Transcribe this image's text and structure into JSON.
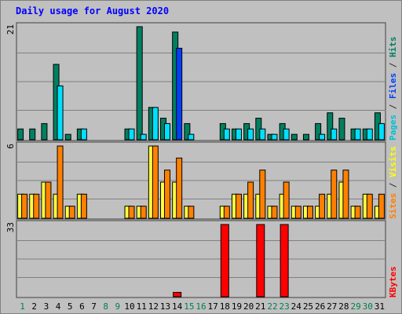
{
  "chart_data": {
    "type": "bar",
    "title": "Daily usage for August 2020",
    "categories": [
      "1",
      "2",
      "3",
      "4",
      "5",
      "6",
      "7",
      "8",
      "9",
      "10",
      "11",
      "12",
      "13",
      "14",
      "15",
      "16",
      "17",
      "18",
      "19",
      "20",
      "21",
      "22",
      "23",
      "24",
      "25",
      "26",
      "27",
      "28",
      "29",
      "30",
      "31"
    ],
    "weekend_days": [
      1,
      8,
      9,
      15,
      16,
      22,
      23,
      29,
      30
    ],
    "panels": [
      {
        "name": "hits-files-pages",
        "ymax": 21,
        "ymax_label": "21",
        "right_labels": [
          {
            "text": "Pages",
            "color": "#00c0d0"
          },
          {
            "text": " / ",
            "color": "#303030"
          },
          {
            "text": "Files",
            "color": "#0040ff"
          },
          {
            "text": " / ",
            "color": "#303030"
          },
          {
            "text": "Hits",
            "color": "#008060"
          }
        ],
        "series": [
          {
            "name": "Hits",
            "color": "#008060",
            "values": [
              2,
              2,
              3,
              14,
              1,
              2,
              0,
              0,
              0,
              2,
              21,
              6,
              4,
              20,
              3,
              0,
              0,
              3,
              2,
              3,
              4,
              1,
              3,
              1,
              1,
              3,
              5,
              4,
              2,
              2,
              5
            ]
          },
          {
            "name": "Files",
            "color": "#0040ff",
            "values": [
              0,
              0,
              0,
              0,
              0,
              0,
              0,
              0,
              0,
              0,
              0,
              2,
              0,
              17,
              0,
              0,
              0,
              0,
              0,
              0,
              0,
              0,
              0,
              0,
              0,
              0,
              0,
              0,
              0,
              0,
              0
            ]
          },
          {
            "name": "Pages",
            "color": "#00e0ff",
            "values": [
              0,
              0,
              0,
              10,
              0,
              2,
              0,
              0,
              0,
              2,
              1,
              6,
              3,
              0,
              1,
              0,
              0,
              2,
              2,
              2,
              2,
              1,
              2,
              0,
              0,
              1,
              2,
              0,
              2,
              2,
              3
            ]
          }
        ]
      },
      {
        "name": "visits-sites",
        "ymax": 6,
        "ymax_label": "6",
        "right_labels": [
          {
            "text": "Sites",
            "color": "#ff8000"
          },
          {
            "text": " / ",
            "color": "#303030"
          },
          {
            "text": "Visits",
            "color": "#ffff00"
          }
        ],
        "series": [
          {
            "name": "Visits",
            "color": "#ffff40",
            "values": [
              2,
              2,
              3,
              2,
              1,
              2,
              0,
              0,
              0,
              1,
              1,
              6,
              3,
              3,
              1,
              0,
              0,
              1,
              2,
              2,
              2,
              1,
              2,
              1,
              1,
              1,
              2,
              3,
              1,
              2,
              1
            ]
          },
          {
            "name": "Sites",
            "color": "#ff8000",
            "values": [
              2,
              2,
              3,
              6,
              1,
              2,
              0,
              0,
              0,
              1,
              1,
              6,
              4,
              5,
              1,
              0,
              0,
              1,
              2,
              3,
              4,
              1,
              3,
              1,
              1,
              2,
              4,
              4,
              1,
              2,
              2
            ]
          }
        ]
      },
      {
        "name": "kbytes",
        "ymax": 33,
        "ymax_label": "33",
        "right_labels": [
          {
            "text": "KBytes",
            "color": "#ff0000"
          }
        ],
        "series": [
          {
            "name": "KBytes",
            "color": "#ff0000",
            "values": [
              0,
              0,
              0,
              0,
              0,
              0,
              0,
              0,
              0,
              0,
              0,
              0,
              0,
              2,
              0,
              0,
              0,
              33,
              0,
              0,
              33,
              0,
              33,
              0,
              0,
              0,
              0,
              0,
              0,
              0,
              0
            ]
          }
        ]
      }
    ]
  },
  "colors": {
    "title": "#0000ff",
    "panel_bg": "#c0c0c0",
    "grid": "#808080",
    "weekday_label": "#000000",
    "weekend_label": "#00804c"
  }
}
